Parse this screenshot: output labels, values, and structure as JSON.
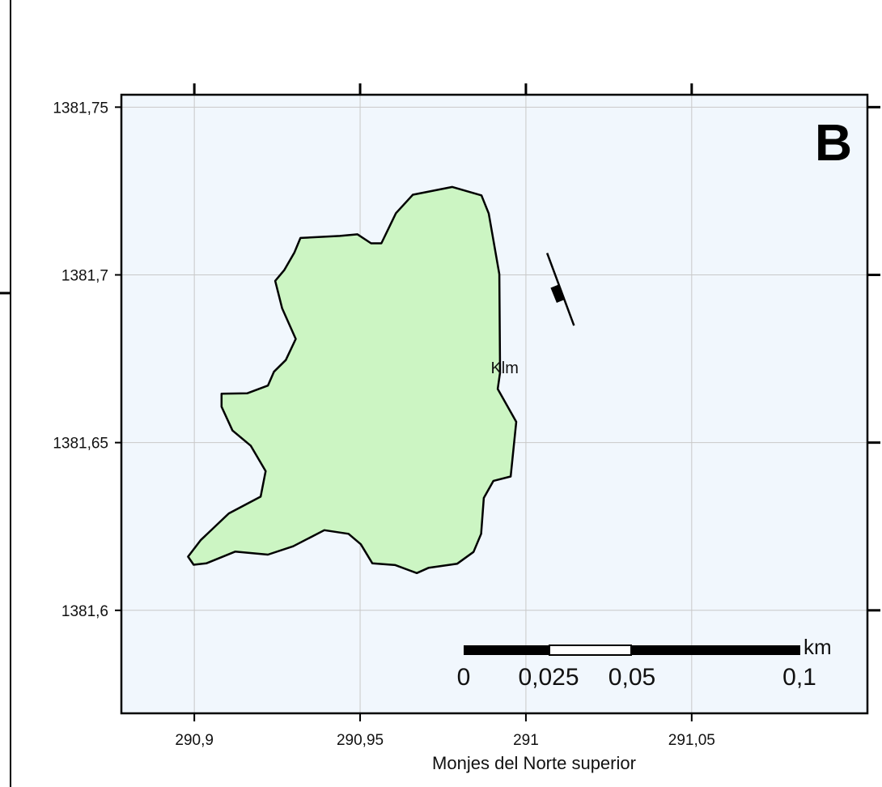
{
  "panel_letter": "B",
  "x_axis": {
    "title": "Monjes del Norte superior",
    "ticks": [
      {
        "value": 290.9,
        "label": "290,9"
      },
      {
        "value": 290.95,
        "label": "290,95"
      },
      {
        "value": 291,
        "label": "291"
      },
      {
        "value": 291.05,
        "label": "291,05"
      }
    ],
    "range": [
      290.878,
      291.103
    ]
  },
  "y_axis": {
    "ticks": [
      {
        "value": 1381.75,
        "label": "1381,75"
      },
      {
        "value": 1381.7,
        "label": "1381,7"
      },
      {
        "value": 1381.65,
        "label": "1381,65"
      },
      {
        "value": 1381.6,
        "label": "1381,6"
      }
    ],
    "range": [
      1381.5693,
      1381.7537
    ]
  },
  "grid": true,
  "colors": {
    "background": "#f1f7fd",
    "polygon_fill": "#ccf5c3",
    "polygon_stroke": "#000000",
    "grid": "#c8c8c8"
  },
  "unit": {
    "label": "Klm",
    "label_position": [
      290.9936,
      1381.6724
    ],
    "outline": [
      [
        290.9439,
        1381.7116
      ],
      [
        290.9492,
        1381.7121
      ],
      [
        290.9533,
        1381.7094
      ],
      [
        290.9564,
        1381.7094
      ],
      [
        290.9608,
        1381.7184
      ],
      [
        290.9659,
        1381.7239
      ],
      [
        290.9778,
        1381.7262
      ],
      [
        290.9866,
        1381.7237
      ],
      [
        290.9888,
        1381.7183
      ],
      [
        290.992,
        1381.7002
      ],
      [
        290.9922,
        1381.6709
      ],
      [
        290.9915,
        1381.666
      ],
      [
        290.9971,
        1381.6562
      ],
      [
        290.9954,
        1381.6399
      ],
      [
        290.9902,
        1381.6386
      ],
      [
        290.9873,
        1381.6335
      ],
      [
        290.9865,
        1381.6228
      ],
      [
        290.9842,
        1381.6174
      ],
      [
        290.9793,
        1381.6139
      ],
      [
        290.9707,
        1381.6127
      ],
      [
        290.9671,
        1381.6111
      ],
      [
        290.9606,
        1381.6135
      ],
      [
        290.9537,
        1381.614
      ],
      [
        290.9502,
        1381.6197
      ],
      [
        290.9465,
        1381.6228
      ],
      [
        290.9392,
        1381.6239
      ],
      [
        290.9298,
        1381.6191
      ],
      [
        290.9222,
        1381.6166
      ],
      [
        290.9123,
        1381.6175
      ],
      [
        290.9036,
        1381.614
      ],
      [
        290.8998,
        1381.6136
      ],
      [
        290.8981,
        1381.616
      ],
      [
        290.9019,
        1381.6209
      ],
      [
        290.9104,
        1381.6289
      ],
      [
        290.92,
        1381.6339
      ],
      [
        290.9215,
        1381.6415
      ],
      [
        290.917,
        1381.6491
      ],
      [
        290.9115,
        1381.6536
      ],
      [
        290.9082,
        1381.6607
      ],
      [
        290.9082,
        1381.6646
      ],
      [
        290.916,
        1381.6647
      ],
      [
        290.9222,
        1381.667
      ],
      [
        290.924,
        1381.6711
      ],
      [
        290.9276,
        1381.6746
      ],
      [
        290.9306,
        1381.6809
      ],
      [
        290.9265,
        1381.69
      ],
      [
        290.9244,
        1381.6982
      ],
      [
        290.9271,
        1381.7014
      ],
      [
        290.9302,
        1381.7067
      ],
      [
        290.932,
        1381.711
      ]
    ]
  },
  "feature": {
    "line": [
      [
        291.0064,
        1381.7065
      ],
      [
        291.0145,
        1381.6849
      ]
    ],
    "marker": [
      291.0096,
      1381.6944
    ]
  },
  "scale_bar": {
    "unit": "km",
    "labels": [
      "0",
      "0,025",
      "0,05",
      "0,1"
    ]
  }
}
